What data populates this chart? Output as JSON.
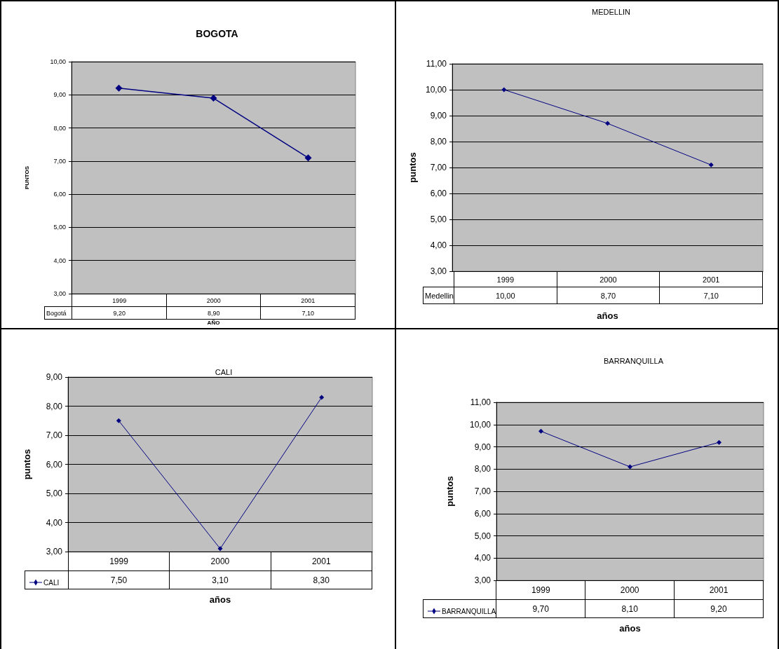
{
  "chart_data": [
    {
      "type": "line",
      "title": "BOGOTA",
      "ylabel": "PUNTOS",
      "xlabel": "AÑO",
      "categories": [
        "1999",
        "2000",
        "2001"
      ],
      "series": [
        {
          "name": "Bogotá",
          "color": "#000080",
          "values": [
            9.2,
            8.9,
            7.1
          ],
          "value_labels": [
            "9,20",
            "8,90",
            "7,10"
          ]
        }
      ],
      "ylim": [
        3,
        10
      ],
      "yticks": [
        {
          "value": 3,
          "label": "3,00"
        },
        {
          "value": 4,
          "label": "4,00"
        },
        {
          "value": 5,
          "label": "5,00"
        },
        {
          "value": 6,
          "label": "6,00"
        },
        {
          "value": 7,
          "label": "7,00"
        },
        {
          "value": 8,
          "label": "8,00"
        },
        {
          "value": 9,
          "label": "9,00"
        },
        {
          "value": 10,
          "label": "10,00"
        }
      ],
      "grid": "y",
      "marker": "diamond",
      "line_style": "solid"
    },
    {
      "type": "line",
      "title": "MEDELLIN",
      "ylabel": "puntos",
      "xlabel": "años",
      "categories": [
        "1999",
        "2000",
        "2001"
      ],
      "series": [
        {
          "name": "Medellin",
          "color": "#000080",
          "values": [
            10.0,
            8.7,
            7.1
          ],
          "value_labels": [
            "10,00",
            "8,70",
            "7,10"
          ]
        }
      ],
      "ylim": [
        3,
        11
      ],
      "yticks": [
        {
          "value": 3,
          "label": "3,00"
        },
        {
          "value": 4,
          "label": "4,00"
        },
        {
          "value": 5,
          "label": "5,00"
        },
        {
          "value": 6,
          "label": "6,00"
        },
        {
          "value": 7,
          "label": "7,00"
        },
        {
          "value": 8,
          "label": "8,00"
        },
        {
          "value": 9,
          "label": "9,00"
        },
        {
          "value": 10,
          "label": "10,00"
        },
        {
          "value": 11,
          "label": "11,00"
        }
      ],
      "grid": "y",
      "marker": "diamond",
      "line_style": "solid"
    },
    {
      "type": "line",
      "title": "CALI",
      "ylabel": "puntos",
      "xlabel": "años",
      "categories": [
        "1999",
        "2000",
        "2001"
      ],
      "series": [
        {
          "name": "CALI",
          "color": "#000080",
          "values": [
            7.5,
            3.1,
            8.3
          ],
          "value_labels": [
            "7,50",
            "3,10",
            "8,30"
          ]
        }
      ],
      "ylim": [
        3,
        9
      ],
      "yticks": [
        {
          "value": 3,
          "label": "3,00"
        },
        {
          "value": 4,
          "label": "4,00"
        },
        {
          "value": 5,
          "label": "5,00"
        },
        {
          "value": 6,
          "label": "6,00"
        },
        {
          "value": 7,
          "label": "7,00"
        },
        {
          "value": 8,
          "label": "8,00"
        },
        {
          "value": 9,
          "label": "9,00"
        }
      ],
      "grid": "y",
      "marker": "diamond",
      "line_style": "solid",
      "legend": "bottom"
    },
    {
      "type": "line",
      "title": "BARRANQUILLA",
      "ylabel": "puntos",
      "xlabel": "años",
      "categories": [
        "1999",
        "2000",
        "2001"
      ],
      "series": [
        {
          "name": "BARRANQUILLA",
          "color": "#000080",
          "values": [
            9.7,
            8.1,
            9.2
          ],
          "value_labels": [
            "9,70",
            "8,10",
            "9,20"
          ]
        }
      ],
      "ylim": [
        3,
        11
      ],
      "yticks": [
        {
          "value": 3,
          "label": "3,00"
        },
        {
          "value": 4,
          "label": "4,00"
        },
        {
          "value": 5,
          "label": "5,00"
        },
        {
          "value": 6,
          "label": "6,00"
        },
        {
          "value": 7,
          "label": "7,00"
        },
        {
          "value": 8,
          "label": "8,00"
        },
        {
          "value": 9,
          "label": "9,00"
        },
        {
          "value": 10,
          "label": "10,00"
        },
        {
          "value": 11,
          "label": "11,00"
        }
      ],
      "grid": "y",
      "marker": "diamond",
      "line_style": "solid",
      "legend": "bottom"
    }
  ]
}
